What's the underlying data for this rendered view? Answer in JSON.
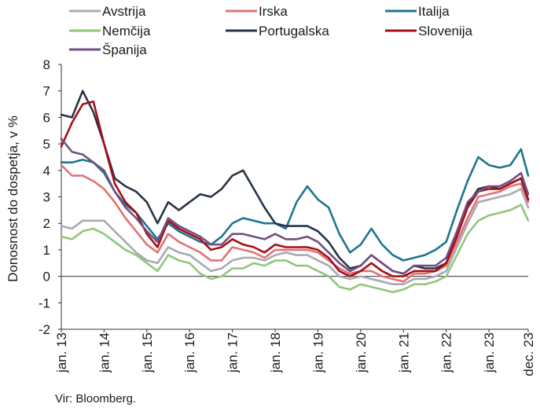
{
  "chart_data": {
    "type": "line",
    "ylabel": "Donosnost do dospetja, v %",
    "source": "Vir: Bloomberg.",
    "ylim": [
      -2,
      8
    ],
    "yticks": [
      "8",
      "7",
      "6",
      "5",
      "4",
      "3",
      "2",
      "1",
      "0",
      "-1",
      "-2"
    ],
    "xticks": [
      "jan. 13",
      "jan. 14",
      "jan. 15",
      "jan. 16",
      "jan. 17",
      "jan. 18",
      "jan. 19",
      "jan. 20",
      "jan. 21",
      "jan. 22",
      "jan. 23",
      "dec. 23"
    ],
    "x": [
      "2013-01",
      "2013-04",
      "2013-07",
      "2013-10",
      "2014-01",
      "2014-04",
      "2014-07",
      "2014-10",
      "2015-01",
      "2015-04",
      "2015-07",
      "2015-10",
      "2016-01",
      "2016-04",
      "2016-07",
      "2016-10",
      "2017-01",
      "2017-04",
      "2017-07",
      "2017-10",
      "2018-01",
      "2018-04",
      "2018-07",
      "2018-10",
      "2019-01",
      "2019-04",
      "2019-07",
      "2019-10",
      "2020-01",
      "2020-04",
      "2020-07",
      "2020-10",
      "2021-01",
      "2021-04",
      "2021-07",
      "2021-10",
      "2022-01",
      "2022-04",
      "2022-07",
      "2022-10",
      "2023-01",
      "2023-04",
      "2023-07",
      "2023-10",
      "2023-12"
    ],
    "legend_position": "top",
    "series": [
      {
        "name": "Avstrija",
        "color": "#a9a9b4",
        "values": [
          1.9,
          1.8,
          2.1,
          2.1,
          2.1,
          1.7,
          1.3,
          0.9,
          0.6,
          0.5,
          1.1,
          0.9,
          0.8,
          0.5,
          0.2,
          0.3,
          0.6,
          0.7,
          0.7,
          0.6,
          0.8,
          0.9,
          0.8,
          0.8,
          0.6,
          0.4,
          0.0,
          -0.1,
          0.0,
          -0.1,
          -0.2,
          -0.3,
          -0.3,
          -0.1,
          -0.1,
          0.0,
          0.2,
          1.1,
          2.0,
          2.8,
          2.9,
          3.0,
          3.1,
          3.3,
          2.6
        ]
      },
      {
        "name": "Irska",
        "color": "#e07474",
        "values": [
          4.2,
          3.8,
          3.8,
          3.6,
          3.3,
          2.8,
          2.2,
          1.7,
          1.2,
          0.9,
          1.6,
          1.3,
          1.1,
          0.9,
          0.6,
          0.6,
          1.1,
          1.0,
          0.9,
          0.7,
          1.0,
          1.0,
          1.0,
          1.0,
          0.9,
          0.6,
          0.3,
          0.1,
          0.2,
          0.2,
          0.0,
          -0.1,
          -0.2,
          0.1,
          0.1,
          0.2,
          0.4,
          1.3,
          2.2,
          3.0,
          3.1,
          3.2,
          3.4,
          3.5,
          2.8
        ]
      },
      {
        "name": "Italija",
        "color": "#1f7590",
        "values": [
          4.3,
          4.3,
          4.4,
          4.3,
          3.9,
          3.2,
          2.7,
          2.4,
          1.9,
          1.4,
          2.0,
          1.7,
          1.5,
          1.3,
          1.2,
          1.5,
          2.0,
          2.2,
          2.1,
          2.0,
          2.0,
          1.8,
          2.8,
          3.4,
          2.9,
          2.6,
          1.6,
          0.9,
          1.2,
          1.8,
          1.2,
          0.8,
          0.6,
          0.7,
          0.8,
          1.0,
          1.3,
          2.5,
          3.6,
          4.5,
          4.2,
          4.1,
          4.2,
          4.8,
          3.8
        ]
      },
      {
        "name": "Nemčija",
        "color": "#92c67a",
        "values": [
          1.5,
          1.4,
          1.7,
          1.8,
          1.6,
          1.3,
          1.0,
          0.8,
          0.5,
          0.2,
          0.8,
          0.6,
          0.5,
          0.1,
          -0.1,
          0.0,
          0.3,
          0.3,
          0.5,
          0.4,
          0.6,
          0.6,
          0.4,
          0.4,
          0.2,
          0.0,
          -0.4,
          -0.5,
          -0.3,
          -0.4,
          -0.5,
          -0.6,
          -0.5,
          -0.3,
          -0.3,
          -0.2,
          0.0,
          0.8,
          1.6,
          2.1,
          2.3,
          2.4,
          2.5,
          2.7,
          2.1
        ]
      },
      {
        "name": "Portugalska",
        "color": "#283447",
        "values": [
          6.1,
          6.0,
          7.0,
          6.2,
          5.0,
          3.7,
          3.4,
          3.2,
          2.8,
          2.0,
          2.8,
          2.5,
          2.8,
          3.1,
          3.0,
          3.3,
          3.8,
          4.0,
          3.3,
          2.6,
          2.0,
          1.9,
          1.9,
          1.9,
          1.7,
          1.3,
          0.7,
          0.3,
          0.4,
          0.8,
          0.5,
          0.2,
          0.1,
          0.4,
          0.3,
          0.3,
          0.5,
          1.6,
          2.7,
          3.3,
          3.4,
          3.3,
          3.5,
          3.7,
          2.9
        ]
      },
      {
        "name": "Slovenija",
        "color": "#a50f15",
        "values": [
          4.9,
          5.8,
          6.5,
          6.6,
          5.0,
          3.5,
          2.8,
          2.4,
          1.6,
          1.1,
          2.1,
          1.8,
          1.6,
          1.4,
          1.0,
          1.1,
          1.4,
          1.2,
          1.1,
          0.9,
          1.2,
          1.1,
          1.1,
          1.1,
          1.0,
          0.7,
          0.2,
          0.0,
          0.2,
          0.5,
          0.2,
          0.0,
          0.0,
          0.2,
          0.2,
          0.2,
          0.5,
          1.5,
          2.6,
          3.2,
          3.3,
          3.3,
          3.5,
          3.7,
          2.9
        ]
      },
      {
        "name": "Španija",
        "color": "#735080",
        "values": [
          5.2,
          4.7,
          4.6,
          4.3,
          4.0,
          3.2,
          2.6,
          2.2,
          1.7,
          1.3,
          2.2,
          1.9,
          1.7,
          1.5,
          1.2,
          1.2,
          1.6,
          1.6,
          1.5,
          1.4,
          1.6,
          1.4,
          1.4,
          1.5,
          1.3,
          0.9,
          0.5,
          0.2,
          0.4,
          0.8,
          0.5,
          0.2,
          0.1,
          0.4,
          0.4,
          0.4,
          0.7,
          1.7,
          2.8,
          3.2,
          3.4,
          3.4,
          3.6,
          3.9,
          3.1
        ]
      }
    ]
  }
}
